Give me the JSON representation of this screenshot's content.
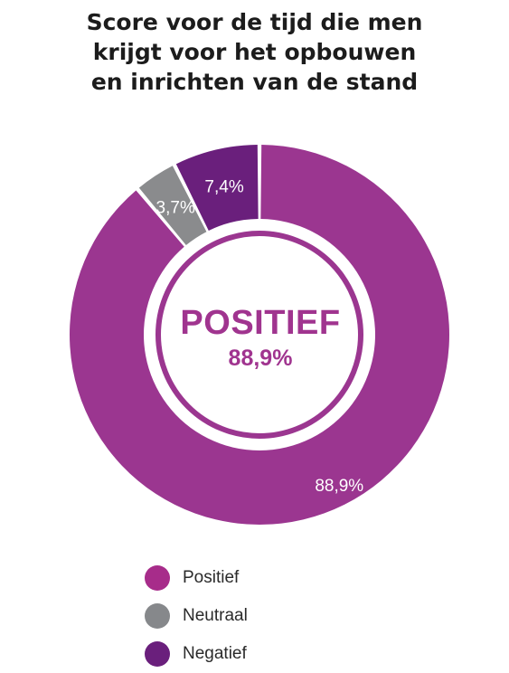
{
  "chart_data": {
    "type": "pie",
    "donut": true,
    "title_lines": [
      "Score voor de tijd die men",
      "krijgt voor het opbouwen",
      "en inrichten van de stand"
    ],
    "center": {
      "label": "POSITIEF",
      "value": "88,9%"
    },
    "slices": [
      {
        "label": "Positief",
        "value": 88.9,
        "display": "88,9%",
        "color": "#9b3690"
      },
      {
        "label": "Neutraal",
        "value": 3.7,
        "display": "3,7%",
        "color": "#8a8b8d"
      },
      {
        "label": "Negatief",
        "value": 7.4,
        "display": "7,4%",
        "color": "#6a1f7c"
      }
    ],
    "legend_position": "bottom",
    "legend": [
      {
        "label": "Positief",
        "color": "#a72c8a"
      },
      {
        "label": "Neutraal",
        "color": "#86888b"
      },
      {
        "label": "Negatief",
        "color": "#6a1f7c"
      }
    ]
  }
}
